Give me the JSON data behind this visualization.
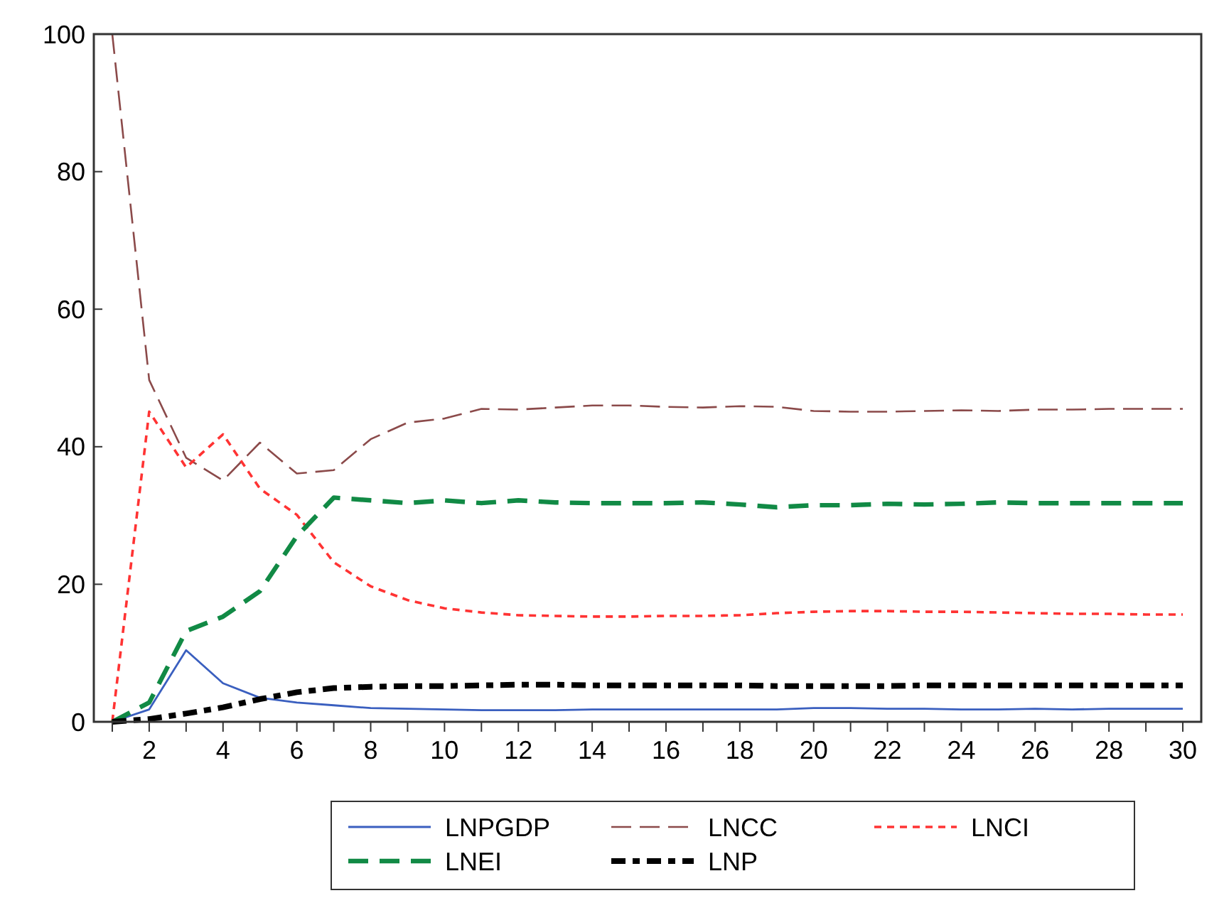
{
  "chart_data": {
    "type": "line",
    "x": [
      1,
      2,
      3,
      4,
      5,
      6,
      7,
      8,
      9,
      10,
      11,
      12,
      13,
      14,
      15,
      16,
      17,
      18,
      19,
      20,
      21,
      22,
      23,
      24,
      25,
      26,
      27,
      28,
      29,
      30
    ],
    "xlim": [
      0.5,
      30.5
    ],
    "xticks": [
      {
        "value": 1,
        "label": null
      },
      2,
      {
        "value": 3,
        "label": null
      },
      4,
      {
        "value": 5,
        "label": null
      },
      6,
      {
        "value": 7,
        "label": null
      },
      8,
      {
        "value": 9,
        "label": null
      },
      10,
      {
        "value": 11,
        "label": null
      },
      12,
      {
        "value": 13,
        "label": null
      },
      14,
      {
        "value": 15,
        "label": null
      },
      16,
      {
        "value": 17,
        "label": null
      },
      18,
      {
        "value": 19,
        "label": null
      },
      20,
      {
        "value": 21,
        "label": null
      },
      22,
      {
        "value": 23,
        "label": null
      },
      24,
      {
        "value": 25,
        "label": null
      },
      26,
      {
        "value": 27,
        "label": null
      },
      28,
      {
        "value": 29,
        "label": null
      },
      30
    ],
    "ylim": [
      0,
      100
    ],
    "yticks": [
      0,
      20,
      40,
      60,
      80,
      100
    ],
    "grid": false,
    "legend": "bottom",
    "series": [
      {
        "name": "LNPGDP",
        "color": "#3a5fbf",
        "line_style": "solid",
        "values": [
          0,
          1.8,
          10.4,
          5.6,
          3.5,
          2.8,
          2.4,
          2.0,
          1.9,
          1.8,
          1.7,
          1.7,
          1.7,
          1.8,
          1.8,
          1.8,
          1.8,
          1.8,
          1.8,
          2.0,
          2.0,
          1.9,
          1.9,
          1.8,
          1.8,
          1.9,
          1.8,
          1.9,
          1.9,
          1.9
        ]
      },
      {
        "name": "LNCC",
        "color": "#8b4a4a",
        "line_style": "dashed",
        "values": [
          100,
          49.7,
          38.4,
          35.1,
          40.6,
          36.1,
          36.6,
          41.1,
          43.5,
          44.1,
          45.5,
          45.4,
          45.7,
          46.0,
          46.0,
          45.8,
          45.7,
          45.9,
          45.8,
          45.2,
          45.1,
          45.1,
          45.2,
          45.3,
          45.2,
          45.4,
          45.4,
          45.5,
          45.5,
          45.5
        ]
      },
      {
        "name": "LNCI",
        "color": "#ff3333",
        "line_style": "dotted",
        "values": [
          0,
          45.1,
          37.0,
          41.8,
          33.9,
          30.1,
          23.2,
          19.7,
          17.7,
          16.5,
          15.9,
          15.5,
          15.4,
          15.3,
          15.3,
          15.4,
          15.4,
          15.5,
          15.8,
          16.0,
          16.1,
          16.1,
          16.0,
          16.0,
          15.9,
          15.8,
          15.7,
          15.7,
          15.6,
          15.6
        ]
      },
      {
        "name": "LNEI",
        "color": "#118a45",
        "line_style": "dashed",
        "values": [
          0,
          2.8,
          13.2,
          15.3,
          19.0,
          27.0,
          32.6,
          32.2,
          31.8,
          32.2,
          31.8,
          32.2,
          31.9,
          31.8,
          31.8,
          31.8,
          31.9,
          31.6,
          31.2,
          31.5,
          31.5,
          31.7,
          31.6,
          31.7,
          31.9,
          31.8,
          31.8,
          31.8,
          31.8,
          31.8
        ]
      },
      {
        "name": "LNP",
        "color": "#000000",
        "line_style": "dashed",
        "values": [
          0,
          0.4,
          1.2,
          2.1,
          3.3,
          4.3,
          4.9,
          5.1,
          5.2,
          5.2,
          5.3,
          5.4,
          5.4,
          5.3,
          5.3,
          5.3,
          5.3,
          5.3,
          5.2,
          5.2,
          5.2,
          5.2,
          5.3,
          5.3,
          5.3,
          5.3,
          5.3,
          5.3,
          5.3,
          5.3
        ]
      }
    ]
  }
}
